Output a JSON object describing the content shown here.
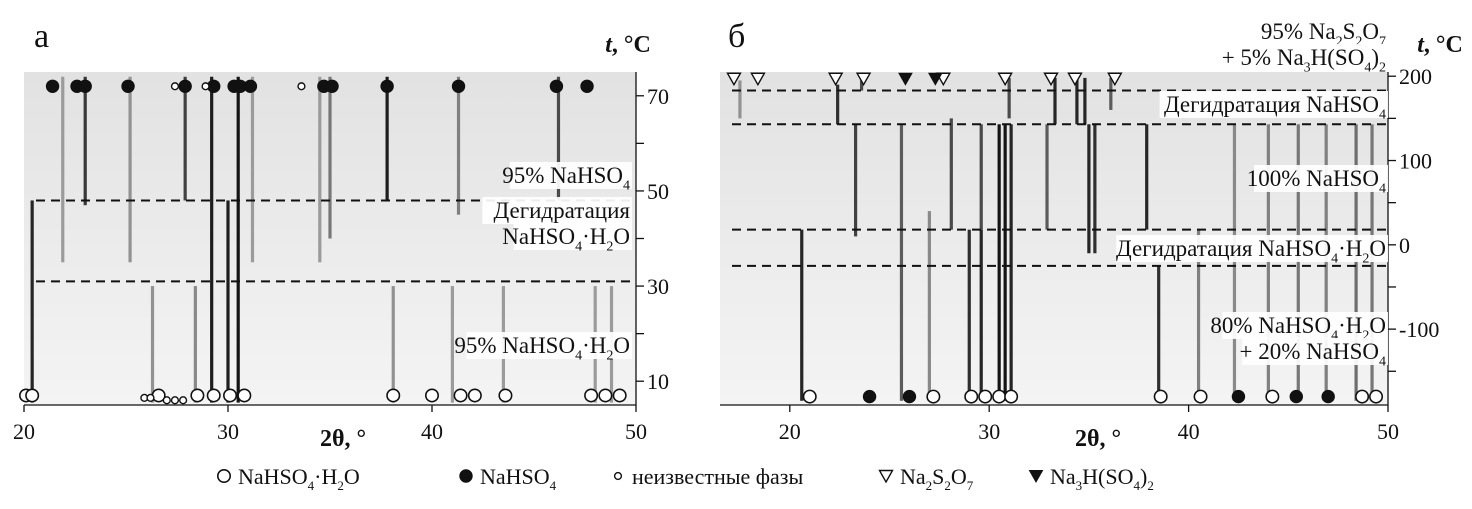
{
  "figure_legend": {
    "items": [
      {
        "marker": "open-circle",
        "segs": [
          {
            "t": "NaHSO"
          },
          {
            "t": "4",
            "s": "sub"
          },
          {
            "t": "·H"
          },
          {
            "t": "2",
            "s": "sub"
          },
          {
            "t": "O"
          }
        ]
      },
      {
        "marker": "filled-circle",
        "segs": [
          {
            "t": "NaHSO"
          },
          {
            "t": "4",
            "s": "sub"
          }
        ]
      },
      {
        "marker": "small-open-circle",
        "segs": [
          {
            "t": "неизвестные фазы"
          }
        ]
      },
      {
        "marker": "open-triangle",
        "segs": [
          {
            "t": "Na"
          },
          {
            "t": "2",
            "s": "sub"
          },
          {
            "t": "S"
          },
          {
            "t": "2",
            "s": "sub"
          },
          {
            "t": "O"
          },
          {
            "t": "7",
            "s": "sub"
          }
        ]
      },
      {
        "marker": "filled-triangle",
        "segs": [
          {
            "t": "Na"
          },
          {
            "t": "3",
            "s": "sub"
          },
          {
            "t": "H(SO"
          },
          {
            "t": "4",
            "s": "sub"
          },
          {
            "t": ")"
          },
          {
            "t": "2",
            "s": "sub"
          }
        ]
      }
    ]
  },
  "chart_data": [
    {
      "type": "heatmap",
      "panel_label": "а",
      "xlabel": "2θ, °",
      "ylabel": "t, °C",
      "xlim": [
        20,
        50
      ],
      "xticks": [
        20,
        30,
        40,
        50
      ],
      "ylim": [
        5,
        75
      ],
      "yticks": [
        10,
        20,
        30,
        40,
        50,
        60,
        70
      ],
      "ytick_labels": [
        "10",
        "",
        "30",
        "",
        "50",
        "",
        "70"
      ],
      "grid": false,
      "boundaries": [
        48,
        31
      ],
      "regions": [
        {
          "label": [
            [
              {
                "t": "95% NaHSO"
              },
              {
                "t": "4",
                "s": "sub"
              }
            ]
          ],
          "y": [
            48,
            75
          ]
        },
        {
          "label": [
            [
              {
                "t": "Дегидратация"
              }
            ],
            [
              {
                "t": "NaHSO"
              },
              {
                "t": "4",
                "s": "sub"
              },
              {
                "t": "·H"
              },
              {
                "t": "2",
                "s": "sub"
              },
              {
                "t": "O"
              }
            ]
          ],
          "y": [
            31,
            48
          ]
        },
        {
          "label": [
            [
              {
                "t": "95% NaHSO"
              },
              {
                "t": "4",
                "s": "sub"
              },
              {
                "t": "·H"
              },
              {
                "t": "2",
                "s": "sub"
              },
              {
                "t": "O"
              }
            ]
          ],
          "y": [
            5,
            31
          ]
        }
      ],
      "lines": [
        {
          "x": 20.4,
          "y": [
            5.5,
            48
          ],
          "i": 0.9
        },
        {
          "x": 23.0,
          "y": [
            47,
            74
          ],
          "i": 0.8
        },
        {
          "x": 27.9,
          "y": [
            48,
            74
          ],
          "i": 0.75
        },
        {
          "x": 29.2,
          "y": [
            5.5,
            74
          ],
          "i": 0.95
        },
        {
          "x": 30.0,
          "y": [
            5.5,
            48
          ],
          "i": 0.95
        },
        {
          "x": 30.5,
          "y": [
            5.5,
            74
          ],
          "i": 1.0
        },
        {
          "x": 37.8,
          "y": [
            48,
            74
          ],
          "i": 0.95
        },
        {
          "x": 35.0,
          "y": [
            40,
            74
          ],
          "i": 0.45
        },
        {
          "x": 41.3,
          "y": [
            45,
            74
          ],
          "i": 0.4
        },
        {
          "x": 46.2,
          "y": [
            48,
            74
          ],
          "i": 0.7
        },
        {
          "x": 25.2,
          "y": [
            35,
            74
          ],
          "i": 0.3
        },
        {
          "x": 21.9,
          "y": [
            35,
            74
          ],
          "i": 0.25
        },
        {
          "x": 31.2,
          "y": [
            35,
            74
          ],
          "i": 0.25
        },
        {
          "x": 34.5,
          "y": [
            35,
            74
          ],
          "i": 0.25
        },
        {
          "x": 26.3,
          "y": [
            5.5,
            30
          ],
          "i": 0.3
        },
        {
          "x": 28.4,
          "y": [
            5.5,
            30
          ],
          "i": 0.35
        },
        {
          "x": 38.1,
          "y": [
            5.5,
            30
          ],
          "i": 0.3
        },
        {
          "x": 41.0,
          "y": [
            5.5,
            30
          ],
          "i": 0.25
        },
        {
          "x": 43.5,
          "y": [
            5.5,
            30
          ],
          "i": 0.25
        },
        {
          "x": 48.0,
          "y": [
            5.5,
            30
          ],
          "i": 0.25
        },
        {
          "x": 48.8,
          "y": [
            5.5,
            30
          ],
          "i": 0.25
        }
      ],
      "markers": [
        {
          "type": "filled-circle",
          "y": 72,
          "x": [
            21.4,
            22.6,
            23.0,
            25.1,
            27.9,
            29.3,
            30.3,
            30.6,
            31.1,
            34.7,
            35.1,
            37.8,
            41.3,
            46.1,
            47.6
          ]
        },
        {
          "type": "small-open-circle",
          "y": 72,
          "x": [
            27.4,
            28.9,
            33.6
          ]
        },
        {
          "type": "open-circle",
          "y": 7,
          "x": [
            20.1,
            20.4,
            26.6,
            28.5,
            29.3,
            30.1,
            30.8,
            38.1,
            40.0,
            41.4,
            42.1,
            43.6,
            47.8,
            48.5,
            49.2
          ]
        },
        {
          "type": "small-open-circle",
          "y": 6.5,
          "x": [
            25.9,
            26.2
          ]
        },
        {
          "type": "small-open-circle",
          "y": 6,
          "x": [
            27.0,
            27.4,
            27.8
          ]
        }
      ]
    },
    {
      "type": "heatmap",
      "panel_label": "б",
      "xlabel": "2θ, °",
      "ylabel": "t, °C",
      "xlim": [
        16.5,
        50
      ],
      "xticks": [
        20,
        30,
        40,
        50
      ],
      "ylim": [
        -190,
        205
      ],
      "yticks": [
        200,
        150,
        100,
        50,
        0,
        -50,
        -100,
        -150
      ],
      "ytick_labels": [
        "200",
        "",
        "100",
        "",
        "0",
        "",
        "-100",
        ""
      ],
      "grid": false,
      "boundaries": [
        183,
        143,
        18,
        -25
      ],
      "regions": [
        {
          "label": [
            [
              {
                "t": "95% Na"
              },
              {
                "t": "2",
                "s": "sub"
              },
              {
                "t": "S"
              },
              {
                "t": "2",
                "s": "sub"
              },
              {
                "t": "O"
              },
              {
                "t": "7",
                "s": "sub"
              }
            ],
            [
              {
                "t": "+ 5% Na"
              },
              {
                "t": "3",
                "s": "sub"
              },
              {
                "t": "H(SO"
              },
              {
                "t": "4",
                "s": "sub"
              },
              {
                "t": ")"
              },
              {
                "t": "2",
                "s": "sub"
              }
            ]
          ],
          "y": [
            183,
            205
          ]
        },
        {
          "label": [
            [
              {
                "t": "Дегидратация NaHSO"
              },
              {
                "t": "4",
                "s": "sub"
              }
            ]
          ],
          "y": [
            143,
            183
          ]
        },
        {
          "label": [
            [
              {
                "t": "100% NaHSO"
              },
              {
                "t": "4",
                "s": "sub"
              }
            ]
          ],
          "y": [
            18,
            143
          ]
        },
        {
          "label": [
            [
              {
                "t": "Дегидратация NaHSO"
              },
              {
                "t": "4",
                "s": "sub"
              },
              {
                "t": "·H"
              },
              {
                "t": "2",
                "s": "sub"
              },
              {
                "t": "O"
              }
            ]
          ],
          "y": [
            -25,
            18
          ]
        },
        {
          "label": [
            [
              {
                "t": "80% NaHSO"
              },
              {
                "t": "4",
                "s": "sub"
              },
              {
                "t": "·H"
              },
              {
                "t": "2",
                "s": "sub"
              },
              {
                "t": "O"
              }
            ],
            [
              {
                "t": "+ 20% NaHSO"
              },
              {
                "t": "4",
                "s": "sub"
              }
            ]
          ],
          "y": [
            -190,
            -25
          ]
        }
      ],
      "lines": [
        {
          "x": 17.5,
          "y": [
            150,
            195
          ],
          "i": 0.3
        },
        {
          "x": 20.6,
          "y": [
            -185,
            18
          ],
          "i": 0.9
        },
        {
          "x": 22.4,
          "y": [
            143,
            190
          ],
          "i": 0.85
        },
        {
          "x": 23.6,
          "y": [
            183,
            195
          ],
          "i": 0.7
        },
        {
          "x": 23.3,
          "y": [
            10,
            143
          ],
          "i": 0.75
        },
        {
          "x": 25.6,
          "y": [
            -185,
            143
          ],
          "i": 0.6
        },
        {
          "x": 27.0,
          "y": [
            -185,
            40
          ],
          "i": 0.35
        },
        {
          "x": 28.1,
          "y": [
            18,
            150
          ],
          "i": 0.7
        },
        {
          "x": 29.0,
          "y": [
            -185,
            18
          ],
          "i": 0.85
        },
        {
          "x": 29.6,
          "y": [
            -185,
            18
          ],
          "i": 0.9
        },
        {
          "x": 29.6,
          "y": [
            18,
            143
          ],
          "i": 0.7
        },
        {
          "x": 30.5,
          "y": [
            -185,
            143
          ],
          "i": 1.0
        },
        {
          "x": 30.8,
          "y": [
            -185,
            143
          ],
          "i": 1.0
        },
        {
          "x": 31.1,
          "y": [
            -185,
            143
          ],
          "i": 0.9
        },
        {
          "x": 31.0,
          "y": [
            150,
            198
          ],
          "i": 0.7
        },
        {
          "x": 32.9,
          "y": [
            18,
            143
          ],
          "i": 0.6
        },
        {
          "x": 33.3,
          "y": [
            143,
            198
          ],
          "i": 0.9
        },
        {
          "x": 34.4,
          "y": [
            143,
            198
          ],
          "i": 0.9
        },
        {
          "x": 34.8,
          "y": [
            143,
            198
          ],
          "i": 0.9
        },
        {
          "x": 35.0,
          "y": [
            -10,
            143
          ],
          "i": 0.9
        },
        {
          "x": 35.3,
          "y": [
            -10,
            143
          ],
          "i": 0.85
        },
        {
          "x": 36.1,
          "y": [
            160,
            198
          ],
          "i": 0.6
        },
        {
          "x": 37.9,
          "y": [
            18,
            143
          ],
          "i": 0.9
        },
        {
          "x": 38.5,
          "y": [
            -185,
            -25
          ],
          "i": 0.85
        },
        {
          "x": 40.5,
          "y": [
            -185,
            18
          ],
          "i": 0.4
        },
        {
          "x": 42.3,
          "y": [
            -185,
            143
          ],
          "i": 0.35
        },
        {
          "x": 44.0,
          "y": [
            -185,
            143
          ],
          "i": 0.4
        },
        {
          "x": 45.5,
          "y": [
            -185,
            143
          ],
          "i": 0.45
        },
        {
          "x": 46.9,
          "y": [
            -185,
            143
          ],
          "i": 0.4
        },
        {
          "x": 48.4,
          "y": [
            -185,
            143
          ],
          "i": 0.5
        },
        {
          "x": 49.2,
          "y": [
            -185,
            143
          ],
          "i": 0.45
        }
      ],
      "markers": [
        {
          "type": "open-triangle",
          "y": 197,
          "x": [
            17.2,
            18.4,
            22.3,
            23.7,
            27.7,
            30.8,
            33.1,
            34.3,
            36.3
          ]
        },
        {
          "type": "filled-triangle",
          "y": 197,
          "x": [
            25.8,
            27.3
          ]
        },
        {
          "type": "open-circle",
          "y": -180,
          "x": [
            21.0,
            27.2,
            29.1,
            29.8,
            30.5,
            31.1,
            38.6,
            40.6,
            44.2,
            48.7,
            49.4
          ]
        },
        {
          "type": "filled-circle",
          "y": -180,
          "x": [
            24.0,
            26.0,
            42.5,
            45.4,
            47.0
          ]
        }
      ]
    }
  ]
}
